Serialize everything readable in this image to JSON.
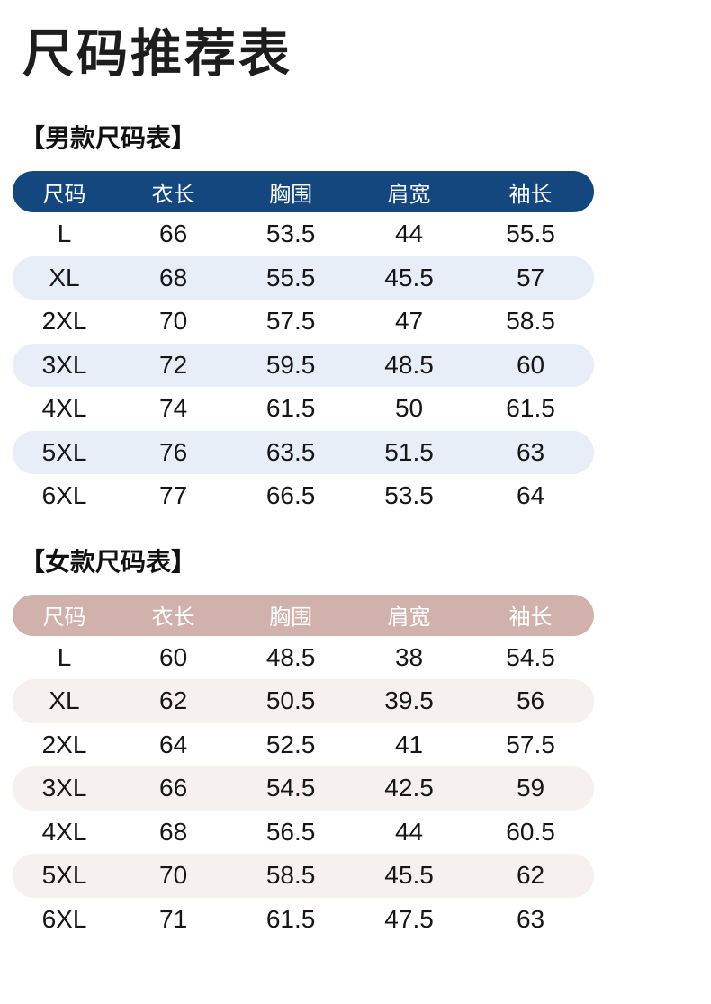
{
  "page": {
    "title": "尺码推荐表",
    "background": "#FFFFFF",
    "text_color": "#1A1A1A"
  },
  "tables": [
    {
      "id": "men",
      "section_title": "【男款尺码表】",
      "header_bg": "#14477E",
      "header_text_color": "#FFFFFF",
      "stripe_bg": "#E7EEF7",
      "columns": [
        "尺码",
        "衣长",
        "胸围",
        "肩宽",
        "袖长"
      ],
      "rows": [
        [
          "L",
          "66",
          "53.5",
          "44",
          "55.5"
        ],
        [
          "XL",
          "68",
          "55.5",
          "45.5",
          "57"
        ],
        [
          "2XL",
          "70",
          "57.5",
          "47",
          "58.5"
        ],
        [
          "3XL",
          "72",
          "59.5",
          "48.5",
          "60"
        ],
        [
          "4XL",
          "74",
          "61.5",
          "50",
          "61.5"
        ],
        [
          "5XL",
          "76",
          "63.5",
          "51.5",
          "63"
        ],
        [
          "6XL",
          "77",
          "66.5",
          "53.5",
          "64"
        ]
      ]
    },
    {
      "id": "women",
      "section_title": "【女款尺码表】",
      "header_bg": "#D0B1AC",
      "header_text_color": "#FFFFFF",
      "stripe_bg": "#F6F1EF",
      "columns": [
        "尺码",
        "衣长",
        "胸围",
        "肩宽",
        "袖长"
      ],
      "rows": [
        [
          "L",
          "60",
          "48.5",
          "38",
          "54.5"
        ],
        [
          "XL",
          "62",
          "50.5",
          "39.5",
          "56"
        ],
        [
          "2XL",
          "64",
          "52.5",
          "41",
          "57.5"
        ],
        [
          "3XL",
          "66",
          "54.5",
          "42.5",
          "59"
        ],
        [
          "4XL",
          "68",
          "56.5",
          "44",
          "60.5"
        ],
        [
          "5XL",
          "70",
          "58.5",
          "45.5",
          "62"
        ],
        [
          "6XL",
          "71",
          "61.5",
          "47.5",
          "63"
        ]
      ]
    }
  ]
}
